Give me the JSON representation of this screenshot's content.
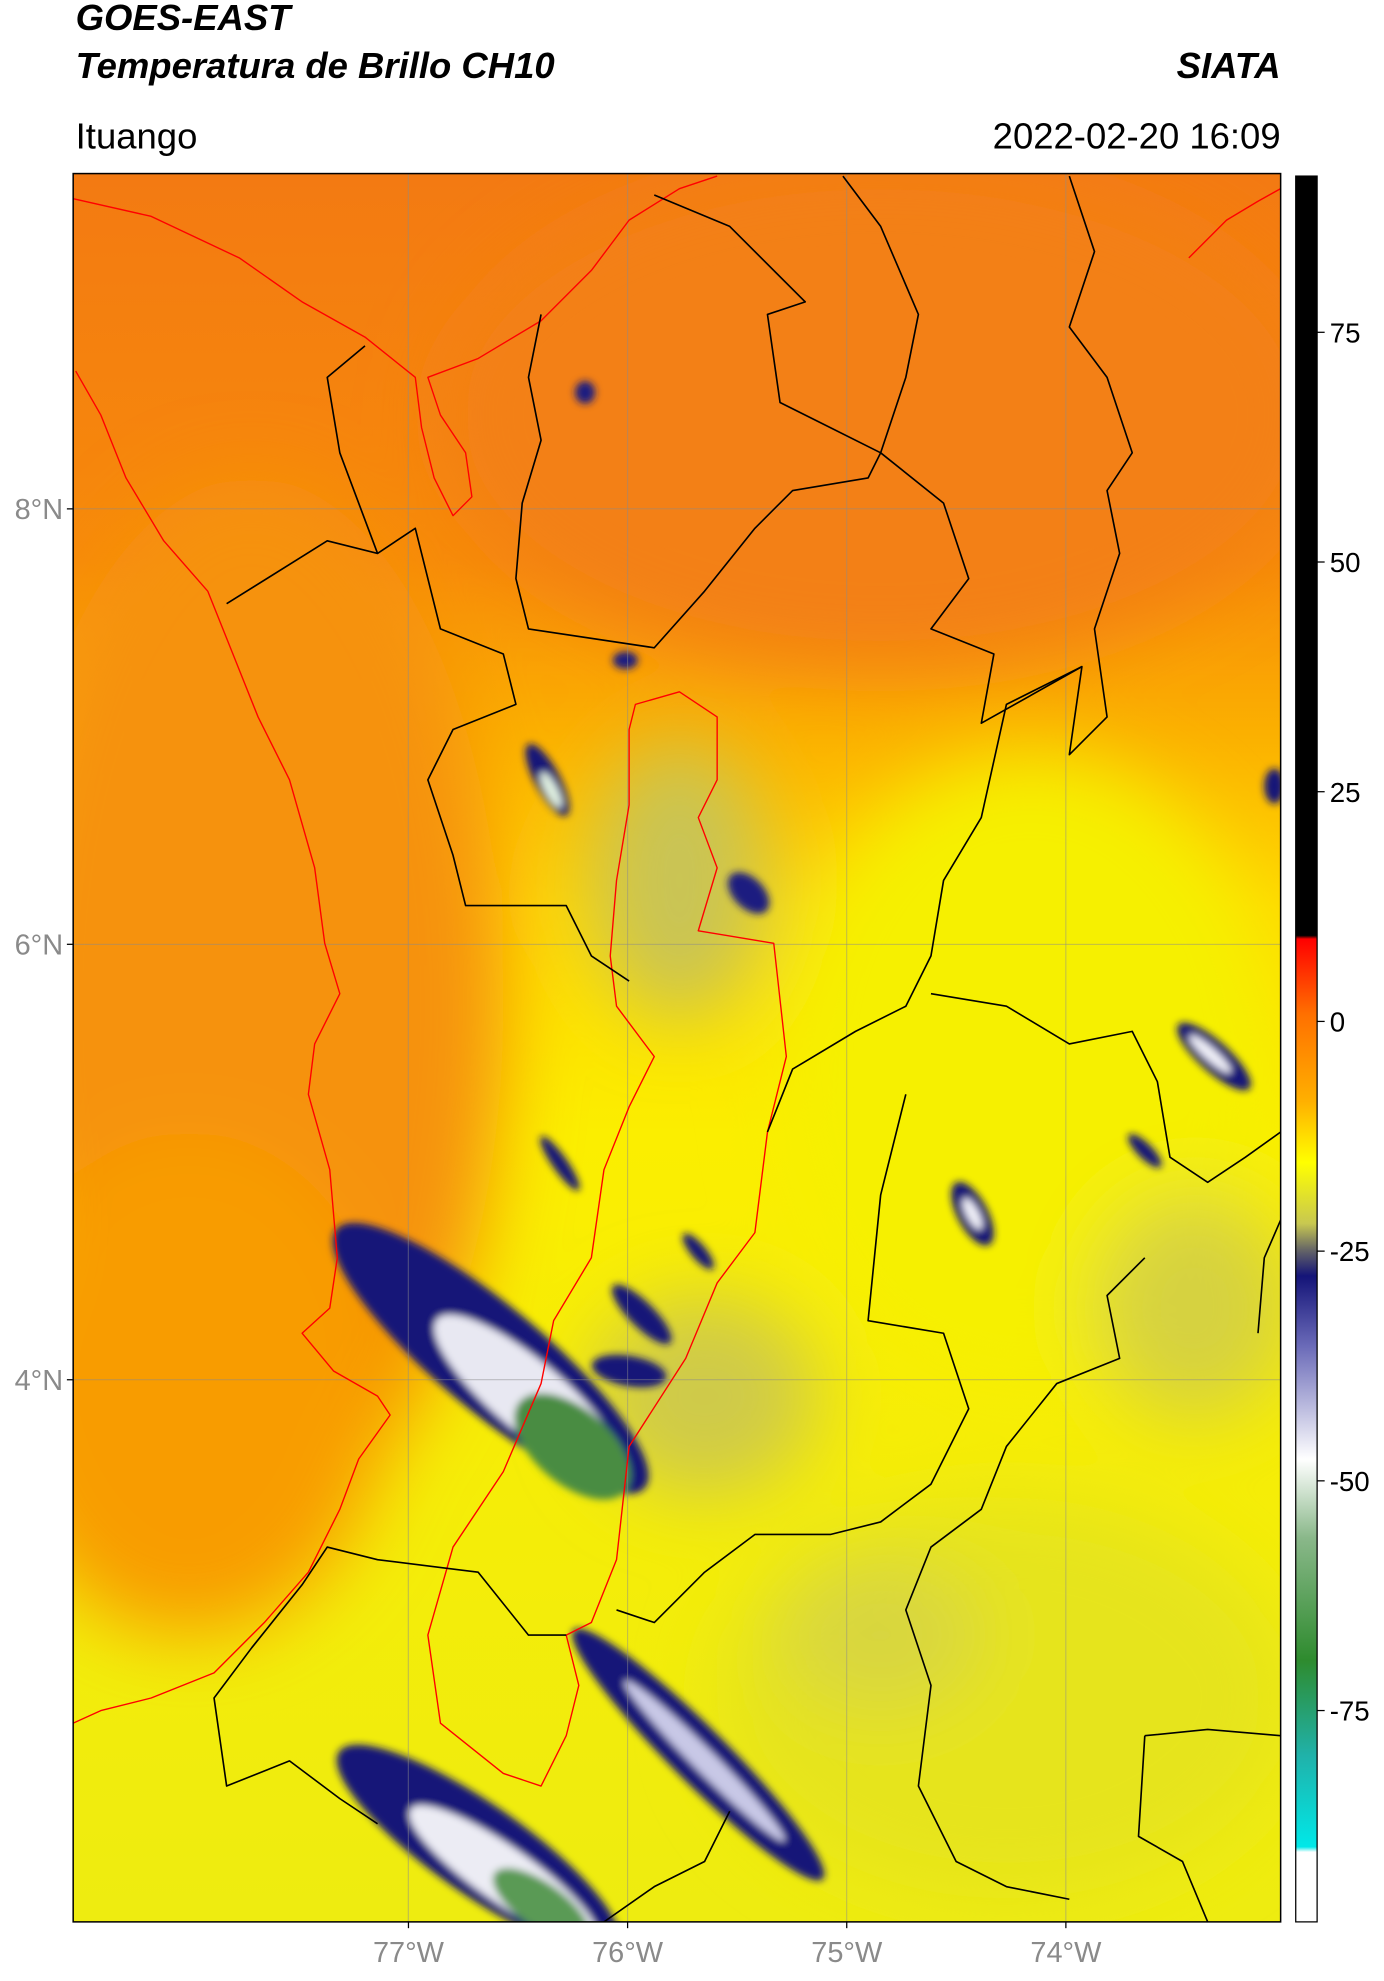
{
  "header": {
    "title": "GOES-EAST",
    "subtitle": "Temperatura de Brillo CH10",
    "brand": "SIATA",
    "location": "Ituango",
    "datetime": "2022-02-20 16:09"
  },
  "map": {
    "lat_range": [
      1.51,
      9.54
    ],
    "lon_range": [
      -78.53,
      -73.02
    ],
    "lat_ticks": [
      {
        "value": 8,
        "label": "8°N"
      },
      {
        "value": 6,
        "label": "6°N"
      },
      {
        "value": 4,
        "label": "4°N"
      }
    ],
    "lon_ticks": [
      {
        "value": -77,
        "label": "77°W"
      },
      {
        "value": -76,
        "label": "76°W"
      },
      {
        "value": -75,
        "label": "75°W"
      },
      {
        "value": -74,
        "label": "74°W"
      }
    ],
    "colorbar": {
      "range": [
        -98,
        92
      ],
      "ticks": [
        75,
        50,
        25,
        0,
        -25,
        -50,
        -75
      ]
    }
  }
}
